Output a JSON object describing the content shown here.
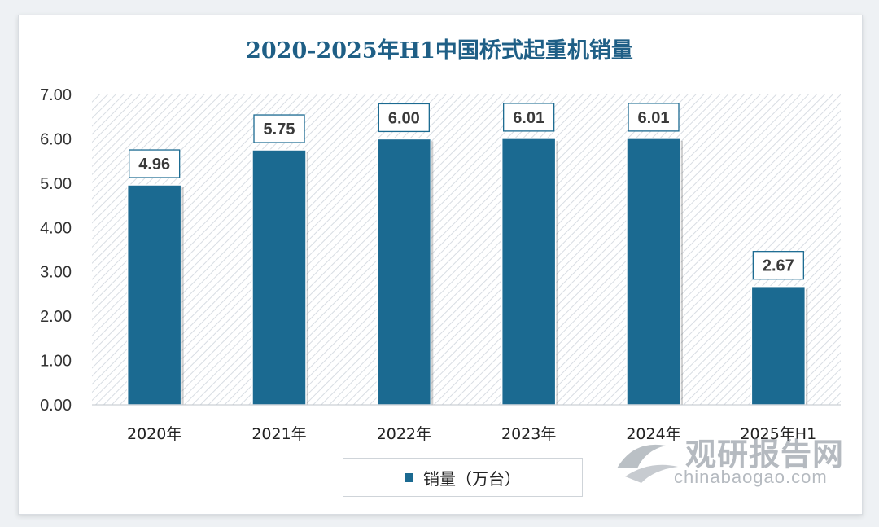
{
  "chart_data": {
    "type": "bar",
    "title": "2020-2025年H1中国桥式起重机销量",
    "categories": [
      "2020年",
      "2021年",
      "2022年",
      "2023年",
      "2024年",
      "2025年H1"
    ],
    "series": [
      {
        "name": "销量（万台）",
        "values": [
          4.96,
          5.75,
          6.0,
          6.01,
          6.01,
          2.67
        ]
      }
    ],
    "data_labels": [
      "4.96",
      "5.75",
      "6.00",
      "6.01",
      "6.01",
      "2.67"
    ],
    "y_ticks": [
      "0.00",
      "1.00",
      "2.00",
      "3.00",
      "4.00",
      "5.00",
      "6.00",
      "7.00"
    ],
    "ylim": [
      0,
      7
    ],
    "legend_position": "bottom",
    "grid": false,
    "bar_color": "#1b6a91",
    "title_color": "#1f5f86"
  },
  "watermark": {
    "name": "观研报告网",
    "url": "chinabaogao.com",
    "logo_icon": "chinabaogao-logo-icon"
  }
}
